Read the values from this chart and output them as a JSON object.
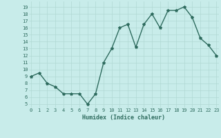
{
  "xlabel": "Humidex (Indice chaleur)",
  "x": [
    0,
    1,
    2,
    3,
    4,
    5,
    6,
    7,
    8,
    9,
    10,
    11,
    12,
    13,
    14,
    15,
    16,
    17,
    18,
    19,
    20,
    21,
    22,
    23
  ],
  "y": [
    9,
    9.5,
    8,
    7.5,
    6.5,
    6.5,
    6.5,
    5,
    6.5,
    11,
    13,
    16,
    16.5,
    13.2,
    16.5,
    18,
    16,
    18.5,
    18.5,
    19,
    17.5,
    14.5,
    13.5,
    12
  ],
  "line_color": "#2e6b5e",
  "bg_color": "#c8ecea",
  "grid_color": "#b0d8d4",
  "tick_label_color": "#2e6b5e",
  "axis_label_color": "#2e6b5e",
  "ylim": [
    4.5,
    19.8
  ],
  "yticks": [
    5,
    6,
    7,
    8,
    9,
    10,
    11,
    12,
    13,
    14,
    15,
    16,
    17,
    18,
    19
  ],
  "xticks": [
    0,
    1,
    2,
    3,
    4,
    5,
    6,
    7,
    8,
    9,
    10,
    11,
    12,
    13,
    14,
    15,
    16,
    17,
    18,
    19,
    20,
    21,
    22,
    23
  ],
  "xlim": [
    -0.3,
    23.3
  ],
  "marker": "*",
  "markersize": 3,
  "linewidth": 1.0,
  "font_size_ticks": 5,
  "font_size_label": 6,
  "font_family": "monospace"
}
